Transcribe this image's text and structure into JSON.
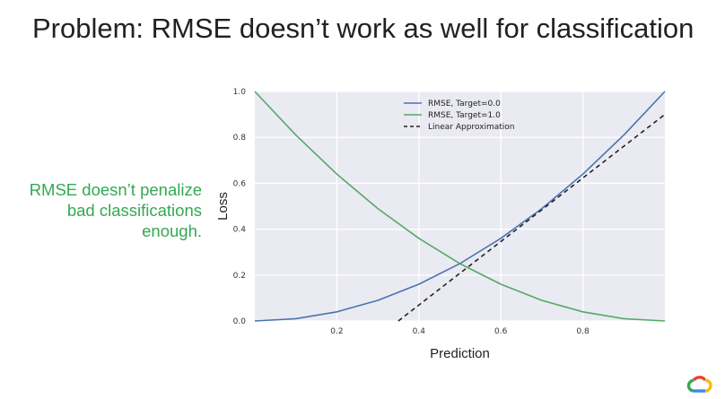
{
  "slide": {
    "title": "Problem: RMSE doesn’t work as well for classification",
    "note_lines": [
      "RMSE doesn’t penalize",
      "bad classifications",
      "enough."
    ]
  },
  "colors": {
    "plot_bg": "#eaeaf2",
    "grid": "#ffffff",
    "series_target_0": "#4c72b0",
    "series_target_1": "#55a868",
    "linear_approx": "#222222",
    "note_text": "#34a853"
  },
  "icons": {
    "logo": "google-cloud-logo"
  },
  "chart_data": {
    "type": "line",
    "title": "",
    "xlabel": "Prediction",
    "ylabel": "Loss",
    "xlim": [
      0.0,
      1.0
    ],
    "ylim": [
      0.0,
      1.0
    ],
    "xticks": [
      0.2,
      0.4,
      0.6,
      0.8
    ],
    "yticks": [
      0.0,
      0.2,
      0.4,
      0.6,
      0.8,
      1.0
    ],
    "xtick_labels": [
      "0.2",
      "0.4",
      "0.6",
      "0.8"
    ],
    "ytick_labels": [
      "0.0",
      "0.2",
      "0.4",
      "0.6",
      "0.8",
      "1.0"
    ],
    "grid": true,
    "legend_position": "top-center",
    "series": [
      {
        "name": "RMSE, Target=0.0",
        "style": "solid",
        "x": [
          0.0,
          0.1,
          0.2,
          0.3,
          0.4,
          0.5,
          0.6,
          0.7,
          0.8,
          0.9,
          1.0
        ],
        "y": [
          0.0,
          0.01,
          0.04,
          0.09,
          0.16,
          0.25,
          0.36,
          0.49,
          0.64,
          0.81,
          1.0
        ]
      },
      {
        "name": "RMSE, Target=1.0",
        "style": "solid",
        "x": [
          0.0,
          0.1,
          0.2,
          0.3,
          0.4,
          0.5,
          0.6,
          0.7,
          0.8,
          0.9,
          1.0
        ],
        "y": [
          1.0,
          0.81,
          0.64,
          0.49,
          0.36,
          0.25,
          0.16,
          0.09,
          0.04,
          0.01,
          0.0
        ]
      },
      {
        "name": "Linear Approximation",
        "style": "dashed",
        "x": [
          0.35,
          1.0
        ],
        "y": [
          0.0,
          0.9
        ]
      }
    ]
  }
}
